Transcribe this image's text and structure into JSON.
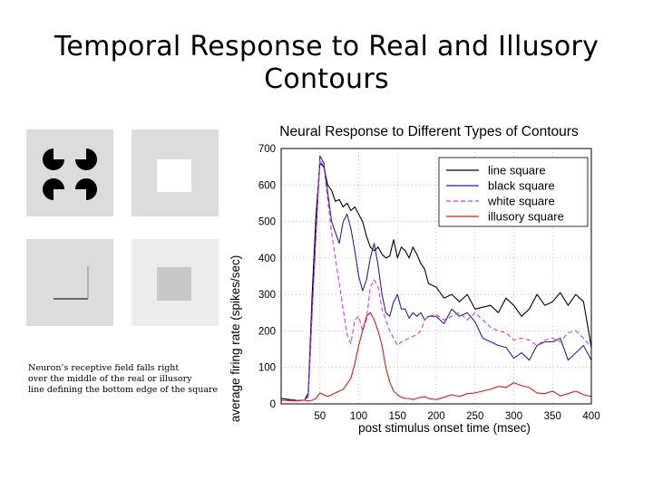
{
  "slide": {
    "title_line1": "Temporal Response to Real and Illusory",
    "title_line2": "Contours",
    "caption_line1": "Neuron’s receptive field falls right",
    "caption_line2": "over the middle of the real or illusory",
    "caption_line3": "line defining the bottom edge of the square"
  },
  "chart_data": {
    "type": "line",
    "title": "Neural Response to Different Types of Contours",
    "xlabel": "post stimulus onset time (msec)",
    "ylabel": "average firing rate (spikes/sec)",
    "xlim": [
      0,
      400
    ],
    "ylim": [
      0,
      700
    ],
    "xticks": [
      50,
      100,
      150,
      200,
      250,
      300,
      350,
      400
    ],
    "yticks": [
      0,
      100,
      200,
      300,
      400,
      500,
      600,
      700
    ],
    "grid": true,
    "legend_position": "top-right",
    "series": [
      {
        "name": "line square",
        "color": "#000000",
        "dash": "",
        "x": [
          0,
          20,
          30,
          35,
          40,
          45,
          50,
          55,
          60,
          65,
          70,
          75,
          80,
          85,
          90,
          95,
          100,
          105,
          110,
          115,
          120,
          125,
          130,
          135,
          140,
          145,
          150,
          155,
          160,
          165,
          170,
          175,
          180,
          185,
          190,
          200,
          210,
          220,
          230,
          240,
          250,
          260,
          270,
          280,
          290,
          300,
          310,
          320,
          330,
          340,
          350,
          360,
          370,
          380,
          390,
          400
        ],
        "y": [
          15,
          10,
          10,
          30,
          300,
          520,
          660,
          650,
          600,
          585,
          555,
          560,
          540,
          550,
          530,
          540,
          520,
          500,
          460,
          430,
          420,
          430,
          410,
          400,
          405,
          450,
          400,
          430,
          420,
          400,
          430,
          410,
          385,
          370,
          330,
          320,
          290,
          300,
          280,
          300,
          260,
          265,
          270,
          250,
          290,
          270,
          240,
          260,
          300,
          270,
          280,
          305,
          270,
          300,
          280,
          155
        ]
      },
      {
        "name": "black square",
        "color": "#1f24a8",
        "dash": "",
        "x": [
          0,
          20,
          30,
          35,
          40,
          45,
          50,
          55,
          60,
          65,
          70,
          75,
          80,
          85,
          90,
          95,
          100,
          105,
          110,
          115,
          120,
          125,
          130,
          135,
          140,
          145,
          150,
          155,
          160,
          165,
          170,
          175,
          180,
          185,
          190,
          200,
          210,
          220,
          230,
          240,
          250,
          260,
          270,
          280,
          290,
          300,
          310,
          320,
          330,
          340,
          350,
          360,
          370,
          380,
          390,
          400
        ],
        "y": [
          10,
          10,
          10,
          20,
          260,
          470,
          680,
          660,
          580,
          500,
          470,
          440,
          500,
          520,
          480,
          420,
          350,
          310,
          340,
          400,
          440,
          380,
          300,
          250,
          240,
          280,
          300,
          260,
          260,
          235,
          250,
          240,
          250,
          230,
          240,
          240,
          220,
          260,
          240,
          250,
          225,
          180,
          170,
          160,
          155,
          125,
          140,
          120,
          160,
          170,
          170,
          180,
          120,
          140,
          160,
          120
        ]
      },
      {
        "name": "white square",
        "color": "#d23cd2",
        "dash": "5,3",
        "x": [
          0,
          20,
          30,
          35,
          40,
          45,
          50,
          55,
          60,
          65,
          70,
          75,
          80,
          85,
          90,
          95,
          100,
          105,
          110,
          115,
          120,
          125,
          130,
          135,
          140,
          145,
          150,
          155,
          160,
          165,
          170,
          175,
          180,
          185,
          190,
          200,
          210,
          220,
          230,
          240,
          250,
          260,
          270,
          280,
          290,
          300,
          310,
          320,
          330,
          340,
          350,
          360,
          370,
          380,
          390,
          400
        ],
        "y": [
          10,
          10,
          10,
          20,
          250,
          470,
          670,
          650,
          560,
          470,
          400,
          330,
          260,
          190,
          165,
          230,
          240,
          200,
          230,
          320,
          340,
          320,
          260,
          230,
          200,
          180,
          160,
          170,
          175,
          180,
          185,
          190,
          200,
          230,
          240,
          245,
          230,
          240,
          250,
          230,
          250,
          230,
          210,
          200,
          195,
          175,
          180,
          175,
          160,
          175,
          180,
          170,
          195,
          200,
          180,
          155
        ]
      },
      {
        "name": "illusory square",
        "color": "#e01818",
        "dash": "",
        "x": [
          0,
          20,
          30,
          35,
          40,
          45,
          50,
          55,
          60,
          65,
          70,
          75,
          80,
          85,
          90,
          95,
          100,
          105,
          110,
          115,
          120,
          125,
          130,
          135,
          140,
          145,
          150,
          155,
          160,
          165,
          170,
          175,
          180,
          185,
          190,
          200,
          210,
          220,
          230,
          240,
          250,
          260,
          270,
          280,
          290,
          300,
          310,
          320,
          330,
          340,
          350,
          360,
          370,
          380,
          390,
          400
        ],
        "y": [
          10,
          8,
          10,
          8,
          10,
          15,
          30,
          25,
          20,
          25,
          30,
          35,
          40,
          55,
          70,
          110,
          160,
          200,
          240,
          250,
          230,
          200,
          160,
          100,
          60,
          35,
          25,
          18,
          15,
          15,
          12,
          15,
          18,
          20,
          15,
          12,
          18,
          25,
          20,
          28,
          30,
          35,
          40,
          48,
          45,
          58,
          50,
          45,
          30,
          28,
          35,
          22,
          28,
          35,
          25,
          20
        ]
      }
    ]
  }
}
